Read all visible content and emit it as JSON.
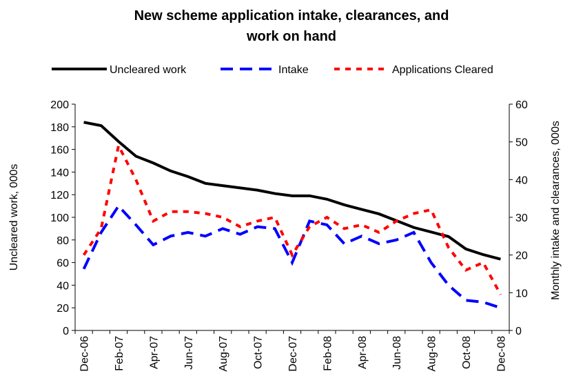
{
  "chart_data": {
    "type": "line",
    "title": "New scheme application intake, clearances, and work on hand",
    "y_label": "Uncleared work, 000s",
    "y2_label": "Monthly intake and clearances, 000s",
    "categories": [
      "Dec-06",
      null,
      "Feb-07",
      null,
      "Apr-07",
      null,
      "Jun-07",
      null,
      "Aug-07",
      null,
      "Oct-07",
      null,
      "Dec-07",
      null,
      "Feb-08",
      null,
      "Apr-08",
      null,
      "Jun-08",
      null,
      "Aug-08",
      null,
      "Oct-08",
      null,
      "Dec-08"
    ],
    "ylim": [
      0,
      200
    ],
    "yticks": [
      0,
      20,
      40,
      60,
      80,
      100,
      120,
      140,
      160,
      180,
      200
    ],
    "y2lim": [
      0,
      60
    ],
    "y2ticks": [
      0,
      10,
      20,
      30,
      40,
      50,
      60
    ],
    "legend": "top",
    "series": [
      {
        "name": "Uncleared work",
        "color": "#000000",
        "dash": "solid",
        "values": [
          184,
          181,
          167,
          154,
          148,
          141,
          136,
          130,
          128,
          126,
          124,
          121,
          119,
          119,
          116,
          111,
          107,
          103,
          97,
          91,
          87,
          83,
          72,
          67,
          63
        ]
      },
      {
        "name": "Intake",
        "color": "#0000ff",
        "dash": "long",
        "axis": "y2",
        "values": [
          16.3,
          26,
          33,
          28,
          22.7,
          25,
          26,
          25,
          27,
          25.5,
          27.5,
          27,
          18,
          29,
          28,
          23,
          25,
          23,
          24,
          26,
          18,
          12,
          8,
          7.5,
          6
        ]
      },
      {
        "name": "Applications Cleared",
        "color": "#ff0000",
        "dash": "short",
        "axis": "y2",
        "values": [
          20,
          27,
          49,
          40,
          29,
          31.5,
          31.5,
          31,
          30,
          27.5,
          29,
          30,
          20,
          27.5,
          30,
          27,
          28,
          26,
          29,
          31,
          32,
          22,
          16,
          18,
          9.5
        ]
      }
    ]
  }
}
